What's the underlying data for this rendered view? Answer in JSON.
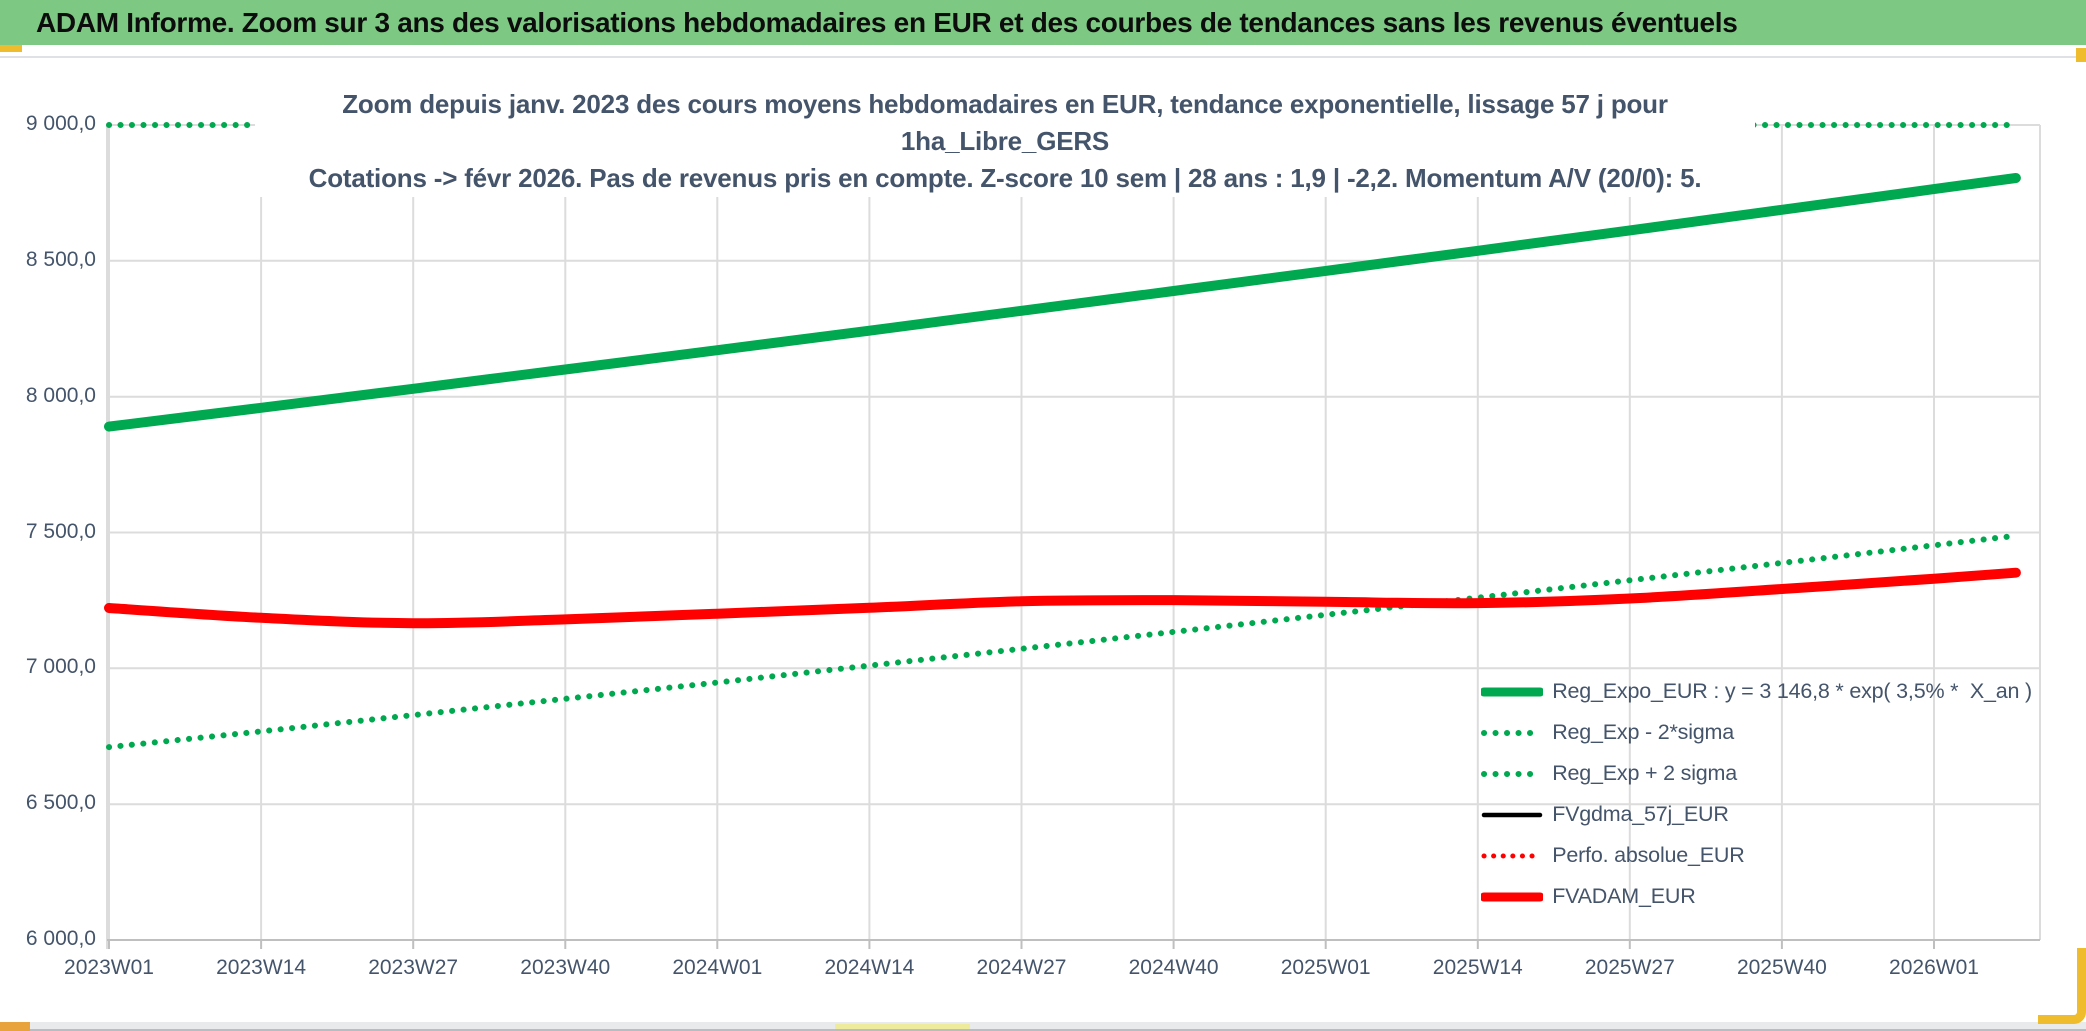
{
  "header": {
    "title": "ADAM Informe. Zoom sur 3 ans des valorisations hebdomadaires en EUR et des courbes de tendances sans les revenus éventuels"
  },
  "colors": {
    "header_green": "#7dc882",
    "accent_gold": "#eebc2c",
    "title_text": "#44546a",
    "gridline": "#dcdcdc",
    "axis_line": "#bfbfbf"
  },
  "chart_data": {
    "type": "line",
    "title_line1": "Zoom depuis janv. 2023 des cours moyens hebdomadaires en EUR, tendance exponentielle, lissage 57 j pour 1ha_Libre_GERS",
    "title_line2": "Cotations -> févr 2026. Pas de revenus pris en compte. Z-score 10 sem | 28 ans : 1,9 | -2,2. Momentum A/V (20/0): 5.",
    "x_unit": "ISO week",
    "xlim_weeks": [
      0,
      165
    ],
    "ylim": [
      6000,
      9000
    ],
    "grid": true,
    "legend_position": "inside-right-bottom",
    "x_ticks": [
      {
        "week": 0,
        "label": "2023W01"
      },
      {
        "week": 13,
        "label": "2023W14"
      },
      {
        "week": 26,
        "label": "2023W27"
      },
      {
        "week": 39,
        "label": "2023W40"
      },
      {
        "week": 52,
        "label": "2024W01"
      },
      {
        "week": 65,
        "label": "2024W14"
      },
      {
        "week": 78,
        "label": "2024W27"
      },
      {
        "week": 91,
        "label": "2024W40"
      },
      {
        "week": 104,
        "label": "2025W01"
      },
      {
        "week": 117,
        "label": "2025W14"
      },
      {
        "week": 130,
        "label": "2025W27"
      },
      {
        "week": 143,
        "label": "2025W40"
      },
      {
        "week": 156,
        "label": "2026W01"
      }
    ],
    "y_ticks": [
      {
        "value": 9000,
        "label": "9 000,0"
      },
      {
        "value": 8500,
        "label": "8 500,0"
      },
      {
        "value": 8000,
        "label": "8 000,0"
      },
      {
        "value": 7500,
        "label": "7 500,0"
      },
      {
        "value": 7000,
        "label": "7 000,0"
      },
      {
        "value": 6500,
        "label": "6 500,0"
      },
      {
        "value": 6000,
        "label": "6 000,0"
      }
    ],
    "sample_weeks": [
      0,
      13,
      26,
      39,
      52,
      65,
      78,
      91,
      104,
      117,
      130,
      143,
      156,
      163
    ],
    "series": [
      {
        "name": "Reg_Expo_EUR : y = 3 146,8 * exp( 3,5% *  X_an )",
        "color": "#00a84f",
        "dash": "solid",
        "width": 10,
        "values": [
          7890,
          7959,
          8029,
          8100,
          8171,
          8243,
          8316,
          8389,
          8463,
          8537,
          8612,
          8688,
          8764,
          8805
        ]
      },
      {
        "name": "Reg_Exp - 2*sigma",
        "color": "#00a84f",
        "dash": "dot",
        "width": 6,
        "values": [
          6710,
          6768,
          6828,
          6888,
          6948,
          7010,
          7072,
          7134,
          7197,
          7260,
          7324,
          7388,
          7453,
          7488
        ]
      },
      {
        "name": "Reg_Exp + 2 sigma",
        "color": "#00a84f",
        "dash": "dot",
        "width": 6,
        "clipped_at_ymax": true,
        "values": [
          9278,
          9359,
          9441,
          9525,
          9608,
          9693,
          9779,
          9865,
          9952,
          10039,
          10127,
          10216,
          10306,
          10354
        ]
      },
      {
        "name": "FVgdma_57j_EUR",
        "color": "#000000",
        "dash": "solid",
        "width": 4.5,
        "values": [
          7226,
          7192,
          7171,
          7182,
          7203,
          7226,
          7250,
          7254,
          7248,
          7246,
          7262,
          7296,
          7333,
          7354
        ]
      },
      {
        "name": "Perfo. absolue_EUR",
        "color": "#ff0000",
        "dash": "dot",
        "width": 5,
        "values": [
          7222,
          7186,
          7166,
          7180,
          7201,
          7223,
          7247,
          7251,
          7245,
          7240,
          7257,
          7292,
          7330,
          7352
        ]
      },
      {
        "name": "FVADAM_EUR",
        "color": "#ff0000",
        "dash": "solid",
        "width": 10,
        "values": [
          7222,
          7186,
          7166,
          7180,
          7201,
          7223,
          7247,
          7251,
          7245,
          7240,
          7257,
          7292,
          7330,
          7352
        ]
      }
    ]
  }
}
